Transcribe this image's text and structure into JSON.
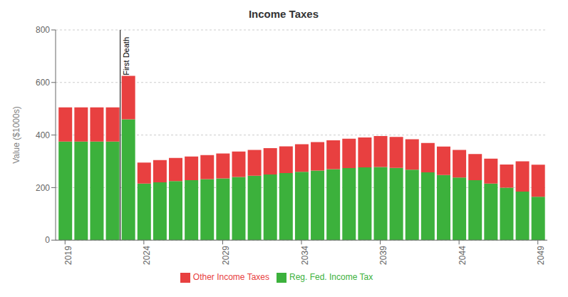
{
  "chart_data": {
    "type": "bar",
    "title": "Income Taxes",
    "y_label": "Value ($1000s)",
    "stacked": true,
    "grid": true,
    "legend": "bottom",
    "x": [
      2019,
      2020,
      2021,
      2022,
      2023,
      2024,
      2025,
      2026,
      2027,
      2028,
      2029,
      2030,
      2031,
      2032,
      2033,
      2034,
      2035,
      2036,
      2037,
      2038,
      2039,
      2040,
      2041,
      2042,
      2043,
      2044,
      2045,
      2046,
      2047,
      2048,
      2049
    ],
    "xlim": [
      2018.4,
      2049.6
    ],
    "xticks": [
      2019,
      2024,
      2029,
      2034,
      2039,
      2044,
      2049
    ],
    "ylim": [
      0,
      800
    ],
    "yticks": [
      0,
      200,
      400,
      600,
      800
    ],
    "series": [
      {
        "name": "Reg. Fed. Income Tax",
        "color": "#3CB13C",
        "values": [
          375,
          375,
          375,
          375,
          460,
          215,
          220,
          225,
          228,
          232,
          235,
          240,
          245,
          250,
          255,
          260,
          265,
          270,
          274,
          277,
          278,
          275,
          268,
          258,
          248,
          238,
          228,
          215,
          200,
          185,
          165
        ]
      },
      {
        "name": "Other Income Taxes",
        "color": "#E84040",
        "values": [
          130,
          130,
          130,
          130,
          165,
          80,
          85,
          88,
          90,
          92,
          95,
          97,
          98,
          100,
          102,
          105,
          108,
          110,
          112,
          114,
          118,
          118,
          116,
          112,
          108,
          105,
          100,
          95,
          88,
          115,
          122
        ]
      }
    ],
    "annotations": [
      {
        "text": "First Death",
        "x": 2022.5
      }
    ]
  }
}
